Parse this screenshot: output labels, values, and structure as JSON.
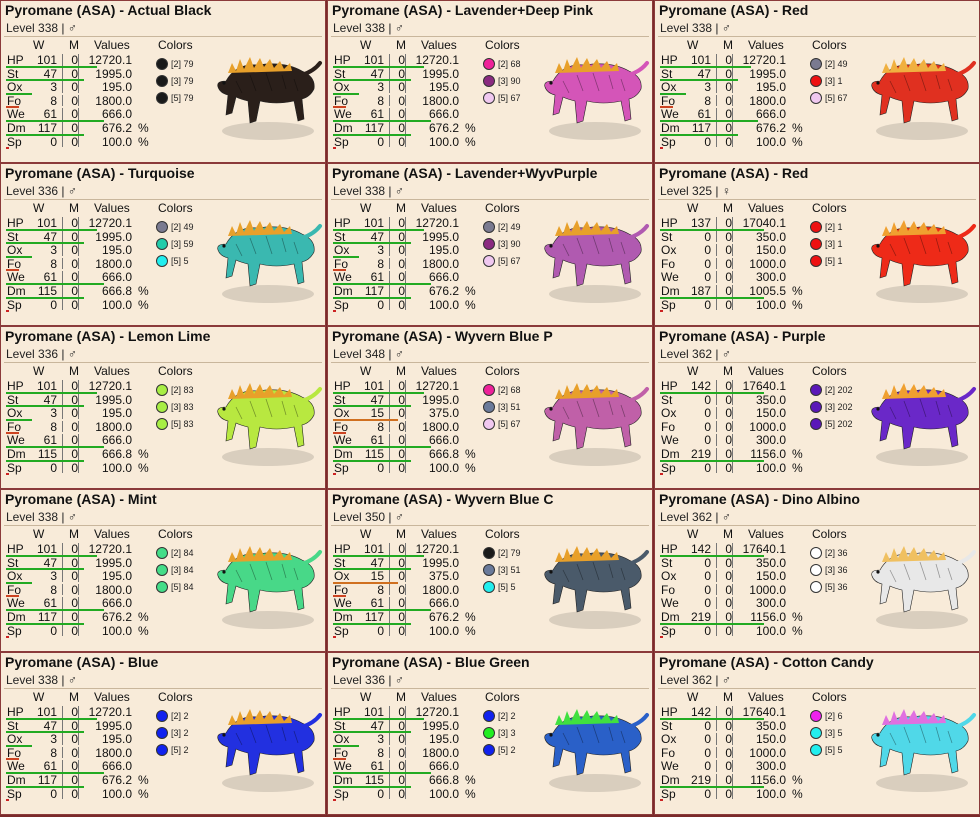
{
  "headers": {
    "w": "W",
    "m": "M",
    "values": "Values",
    "colors": "Colors"
  },
  "stat_names": [
    "HP",
    "St",
    "Ox",
    "Fo",
    "We",
    "Dm",
    "Sp"
  ],
  "cards": [
    {
      "title": "Pyromane (ASA) - Actual Black",
      "level": "Level 338 | ♂",
      "stats": [
        [
          "101",
          "0",
          "12720.1"
        ],
        [
          "47",
          "0",
          "1995.0"
        ],
        [
          "3",
          "0",
          "195.0"
        ],
        [
          "8",
          "0",
          "1800.0"
        ],
        [
          "61",
          "0",
          "666.0"
        ],
        [
          "117",
          "0",
          "676.2"
        ],
        [
          "0",
          "0",
          "100.0"
        ]
      ],
      "bars": [
        0.7,
        0.6,
        0.2,
        0.1,
        0.75,
        0.6,
        0.02
      ],
      "colors": [
        {
          "label": "[2] 79",
          "hex": "#1a1a1a"
        },
        {
          "label": "[3] 79",
          "hex": "#1a1a1a"
        },
        {
          "label": "[5] 79",
          "hex": "#1a1a1a"
        }
      ],
      "body": "#2a1f1a",
      "accent": "#e8a02a"
    },
    {
      "title": "Pyromane (ASA) - Lavender+Deep Pink",
      "level": "Level 338 | ♂",
      "stats": [
        [
          "101",
          "0",
          "12720.1"
        ],
        [
          "47",
          "0",
          "1995.0"
        ],
        [
          "3",
          "0",
          "195.0"
        ],
        [
          "8",
          "0",
          "1800.0"
        ],
        [
          "61",
          "0",
          "666.0"
        ],
        [
          "117",
          "0",
          "676.2"
        ],
        [
          "0",
          "0",
          "100.0"
        ]
      ],
      "bars": [
        0.7,
        0.6,
        0.2,
        0.1,
        0.75,
        0.6,
        0.02
      ],
      "colors": [
        {
          "label": "[2] 68",
          "hex": "#ee2299"
        },
        {
          "label": "[3] 90",
          "hex": "#8a2a80"
        },
        {
          "label": "[5] 67",
          "hex": "#f0c8f0"
        }
      ],
      "body": "#d455b8",
      "accent": "#e8a02a"
    },
    {
      "title": "Pyromane (ASA) - Red",
      "level": "Level 338 | ♂",
      "stats": [
        [
          "101",
          "0",
          "12720.1"
        ],
        [
          "47",
          "0",
          "1995.0"
        ],
        [
          "3",
          "0",
          "195.0"
        ],
        [
          "8",
          "0",
          "1800.0"
        ],
        [
          "61",
          "0",
          "666.0"
        ],
        [
          "117",
          "0",
          "676.2"
        ],
        [
          "0",
          "0",
          "100.0"
        ]
      ],
      "bars": [
        0.7,
        0.6,
        0.2,
        0.1,
        0.75,
        0.6,
        0.02
      ],
      "colors": [
        {
          "label": "[2] 49",
          "hex": "#7a7a90"
        },
        {
          "label": "[3] 1",
          "hex": "#ee1111"
        },
        {
          "label": "[5] 67",
          "hex": "#f0c8f0"
        }
      ],
      "body": "#e03020",
      "accent": "#f0b040"
    },
    {
      "title": "Pyromane (ASA) - Turquoise",
      "level": "Level 336 | ♂",
      "stats": [
        [
          "101",
          "0",
          "12720.1"
        ],
        [
          "47",
          "0",
          "1995.0"
        ],
        [
          "3",
          "0",
          "195.0"
        ],
        [
          "8",
          "0",
          "1800.0"
        ],
        [
          "61",
          "0",
          "666.0"
        ],
        [
          "115",
          "0",
          "666.8"
        ],
        [
          "0",
          "0",
          "100.0"
        ]
      ],
      "bars": [
        0.7,
        0.6,
        0.2,
        0.1,
        0.75,
        0.6,
        0.02
      ],
      "colors": [
        {
          "label": "[2] 49",
          "hex": "#7a7a90"
        },
        {
          "label": "[3] 59",
          "hex": "#22ccaa"
        },
        {
          "label": "[5] 5",
          "hex": "#22eeee"
        }
      ],
      "body": "#3ab8b0",
      "accent": "#e8a02a"
    },
    {
      "title": "Pyromane (ASA) - Lavender+WyvPurple",
      "level": "Level 338 | ♂",
      "stats": [
        [
          "101",
          "0",
          "12720.1"
        ],
        [
          "47",
          "0",
          "1995.0"
        ],
        [
          "3",
          "0",
          "195.0"
        ],
        [
          "8",
          "0",
          "1800.0"
        ],
        [
          "61",
          "0",
          "666.0"
        ],
        [
          "117",
          "0",
          "676.2"
        ],
        [
          "0",
          "0",
          "100.0"
        ]
      ],
      "bars": [
        0.7,
        0.6,
        0.2,
        0.1,
        0.75,
        0.6,
        0.02
      ],
      "colors": [
        {
          "label": "[2] 49",
          "hex": "#7a7a90"
        },
        {
          "label": "[3] 90",
          "hex": "#8a2a80"
        },
        {
          "label": "[5] 67",
          "hex": "#f0c8f0"
        }
      ],
      "body": "#b05ab0",
      "accent": "#e8a02a"
    },
    {
      "title": "Pyromane (ASA) - Red",
      "level": "Level 325 | ♀",
      "stats": [
        [
          "137",
          "0",
          "17040.1"
        ],
        [
          "0",
          "0",
          "350.0"
        ],
        [
          "0",
          "0",
          "150.0"
        ],
        [
          "0",
          "0",
          "1000.0"
        ],
        [
          "0",
          "0",
          "300.0"
        ],
        [
          "187",
          "0",
          "1005.5"
        ],
        [
          "0",
          "0",
          "100.0"
        ]
      ],
      "bars": [
        0.8,
        0.0,
        0.0,
        0.0,
        0.0,
        0.8,
        0.02
      ],
      "colors": [
        {
          "label": "[2] 1",
          "hex": "#ee1111"
        },
        {
          "label": "[3] 1",
          "hex": "#ee1111"
        },
        {
          "label": "[5] 1",
          "hex": "#ee1111"
        }
      ],
      "body": "#ee2a18",
      "accent": "#f0a030"
    },
    {
      "title": "Pyromane (ASA) - Lemon Lime",
      "level": "Level 336 | ♂",
      "stats": [
        [
          "101",
          "0",
          "12720.1"
        ],
        [
          "47",
          "0",
          "1995.0"
        ],
        [
          "3",
          "0",
          "195.0"
        ],
        [
          "8",
          "0",
          "1800.0"
        ],
        [
          "61",
          "0",
          "666.0"
        ],
        [
          "115",
          "0",
          "666.8"
        ],
        [
          "0",
          "0",
          "100.0"
        ]
      ],
      "bars": [
        0.7,
        0.6,
        0.2,
        0.1,
        0.75,
        0.6,
        0.02
      ],
      "colors": [
        {
          "label": "[2] 83",
          "hex": "#a8ee44"
        },
        {
          "label": "[3] 83",
          "hex": "#a8ee44"
        },
        {
          "label": "[5] 83",
          "hex": "#a8ee44"
        }
      ],
      "body": "#b8e840",
      "accent": "#e8a02a"
    },
    {
      "title": "Pyromane (ASA) - Wyvern Blue P",
      "level": "Level 348 | ♂",
      "stats": [
        [
          "101",
          "0",
          "12720.1"
        ],
        [
          "47",
          "0",
          "1995.0"
        ],
        [
          "15",
          "0",
          "375.0"
        ],
        [
          "8",
          "0",
          "1800.0"
        ],
        [
          "61",
          "0",
          "666.0"
        ],
        [
          "115",
          "0",
          "666.8"
        ],
        [
          "0",
          "0",
          "100.0"
        ]
      ],
      "bars": [
        0.7,
        0.6,
        0.5,
        0.1,
        0.75,
        0.6,
        0.02
      ],
      "colors": [
        {
          "label": "[2] 68",
          "hex": "#ee2299"
        },
        {
          "label": "[3] 51",
          "hex": "#6a7a9a"
        },
        {
          "label": "[5] 67",
          "hex": "#f0c8f0"
        }
      ],
      "body": "#c060a8",
      "accent": "#e8a02a"
    },
    {
      "title": "Pyromane (ASA) - Purple",
      "level": "Level 362 | ♂",
      "stats": [
        [
          "142",
          "0",
          "17640.1"
        ],
        [
          "0",
          "0",
          "350.0"
        ],
        [
          "0",
          "0",
          "150.0"
        ],
        [
          "0",
          "0",
          "1000.0"
        ],
        [
          "0",
          "0",
          "300.0"
        ],
        [
          "219",
          "0",
          "1156.0"
        ],
        [
          "0",
          "0",
          "100.0"
        ]
      ],
      "bars": [
        0.8,
        0.0,
        0.0,
        0.0,
        0.0,
        0.8,
        0.02
      ],
      "colors": [
        {
          "label": "[2] 202",
          "hex": "#5a18b8"
        },
        {
          "label": "[3] 202",
          "hex": "#5a18b8"
        },
        {
          "label": "[5] 202",
          "hex": "#5a18b8"
        }
      ],
      "body": "#6a28c8",
      "accent": "#f0a030"
    },
    {
      "title": "Pyromane (ASA) - Mint",
      "level": "Level 338 | ♂",
      "stats": [
        [
          "101",
          "0",
          "12720.1"
        ],
        [
          "47",
          "0",
          "1995.0"
        ],
        [
          "3",
          "0",
          "195.0"
        ],
        [
          "8",
          "0",
          "1800.0"
        ],
        [
          "61",
          "0",
          "666.0"
        ],
        [
          "117",
          "0",
          "676.2"
        ],
        [
          "0",
          "0",
          "100.0"
        ]
      ],
      "bars": [
        0.7,
        0.6,
        0.2,
        0.1,
        0.75,
        0.6,
        0.02
      ],
      "colors": [
        {
          "label": "[2] 84",
          "hex": "#44dd88"
        },
        {
          "label": "[3] 84",
          "hex": "#44dd88"
        },
        {
          "label": "[5] 84",
          "hex": "#44dd88"
        }
      ],
      "body": "#48d888",
      "accent": "#e8a02a"
    },
    {
      "title": "Pyromane (ASA) - Wyvern Blue C",
      "level": "Level 350 | ♂",
      "stats": [
        [
          "101",
          "0",
          "12720.1"
        ],
        [
          "47",
          "0",
          "1995.0"
        ],
        [
          "15",
          "0",
          "375.0"
        ],
        [
          "8",
          "0",
          "1800.0"
        ],
        [
          "61",
          "0",
          "666.0"
        ],
        [
          "117",
          "0",
          "676.2"
        ],
        [
          "0",
          "0",
          "100.0"
        ]
      ],
      "bars": [
        0.7,
        0.6,
        0.5,
        0.1,
        0.75,
        0.6,
        0.02
      ],
      "colors": [
        {
          "label": "[2] 79",
          "hex": "#1a1a1a"
        },
        {
          "label": "[3] 51",
          "hex": "#6a7a9a"
        },
        {
          "label": "[5] 5",
          "hex": "#22eeee"
        }
      ],
      "body": "#4a5a6a",
      "accent": "#e8a02a"
    },
    {
      "title": "Pyromane (ASA) - Dino Albino",
      "level": "Level 362 | ♂",
      "stats": [
        [
          "142",
          "0",
          "17640.1"
        ],
        [
          "0",
          "0",
          "350.0"
        ],
        [
          "0",
          "0",
          "150.0"
        ],
        [
          "0",
          "0",
          "1000.0"
        ],
        [
          "0",
          "0",
          "300.0"
        ],
        [
          "219",
          "0",
          "1156.0"
        ],
        [
          "0",
          "0",
          "100.0"
        ]
      ],
      "bars": [
        0.8,
        0.0,
        0.0,
        0.0,
        0.0,
        0.8,
        0.02
      ],
      "colors": [
        {
          "label": "[2] 36",
          "hex": "#ffffff"
        },
        {
          "label": "[3] 36",
          "hex": "#ffffff"
        },
        {
          "label": "[5] 36",
          "hex": "#ffffff"
        }
      ],
      "body": "#e8e8e8",
      "accent": "#f0c060"
    },
    {
      "title": "Pyromane (ASA) - Blue",
      "level": "Level 338 | ♂",
      "stats": [
        [
          "101",
          "0",
          "12720.1"
        ],
        [
          "47",
          "0",
          "1995.0"
        ],
        [
          "3",
          "0",
          "195.0"
        ],
        [
          "8",
          "0",
          "1800.0"
        ],
        [
          "61",
          "0",
          "666.0"
        ],
        [
          "117",
          "0",
          "676.2"
        ],
        [
          "0",
          "0",
          "100.0"
        ]
      ],
      "bars": [
        0.7,
        0.6,
        0.2,
        0.1,
        0.75,
        0.6,
        0.02
      ],
      "colors": [
        {
          "label": "[2] 2",
          "hex": "#1122ee"
        },
        {
          "label": "[3] 2",
          "hex": "#1122ee"
        },
        {
          "label": "[5] 2",
          "hex": "#1122ee"
        }
      ],
      "body": "#2230e0",
      "accent": "#e8a02a"
    },
    {
      "title": "Pyromane (ASA) - Blue Green",
      "level": "Level 336 | ♂",
      "stats": [
        [
          "101",
          "0",
          "12720.1"
        ],
        [
          "47",
          "0",
          "1995.0"
        ],
        [
          "3",
          "0",
          "195.0"
        ],
        [
          "8",
          "0",
          "1800.0"
        ],
        [
          "61",
          "0",
          "666.0"
        ],
        [
          "115",
          "0",
          "666.8"
        ],
        [
          "0",
          "0",
          "100.0"
        ]
      ],
      "bars": [
        0.7,
        0.6,
        0.2,
        0.1,
        0.75,
        0.6,
        0.02
      ],
      "colors": [
        {
          "label": "[2] 2",
          "hex": "#1122ee"
        },
        {
          "label": "[3] 3",
          "hex": "#22ee22"
        },
        {
          "label": "[5] 2",
          "hex": "#1122ee"
        }
      ],
      "body": "#2a60c8",
      "accent": "#40e040"
    },
    {
      "title": "Pyromane (ASA) - Cotton Candy",
      "level": "Level 362 | ♂",
      "stats": [
        [
          "142",
          "0",
          "17640.1"
        ],
        [
          "0",
          "0",
          "350.0"
        ],
        [
          "0",
          "0",
          "150.0"
        ],
        [
          "0",
          "0",
          "1000.0"
        ],
        [
          "0",
          "0",
          "300.0"
        ],
        [
          "219",
          "0",
          "1156.0"
        ],
        [
          "0",
          "0",
          "100.0"
        ]
      ],
      "bars": [
        0.8,
        0.0,
        0.0,
        0.0,
        0.0,
        0.8,
        0.02
      ],
      "colors": [
        {
          "label": "[2] 6",
          "hex": "#ee22ee"
        },
        {
          "label": "[3] 5",
          "hex": "#22eeee"
        },
        {
          "label": "[5] 5",
          "hex": "#22eeee"
        }
      ],
      "body": "#50d8e8",
      "accent": "#e070e0"
    }
  ]
}
